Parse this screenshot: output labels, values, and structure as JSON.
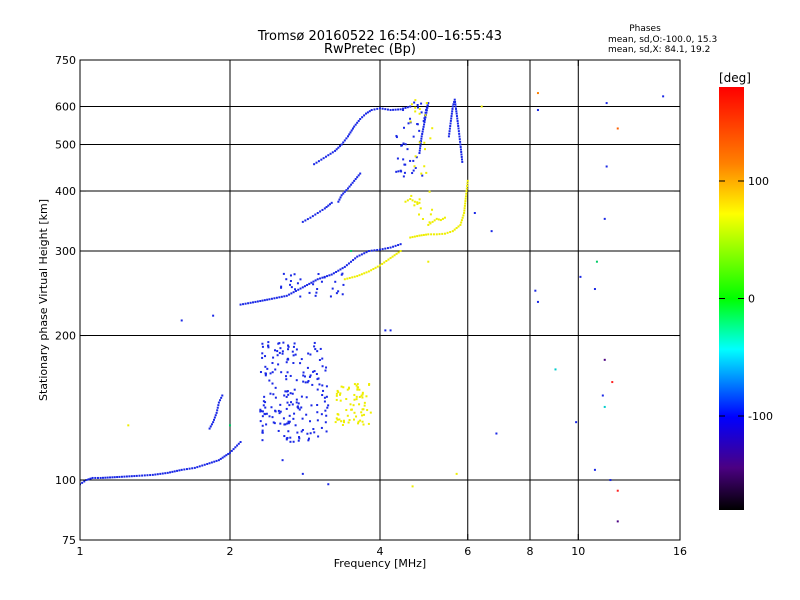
{
  "chart_data": {
    "type": "scatter",
    "title": "Tromsø 20160522 16:54:00–16:55:43",
    "subtitle": "RwPretec (Bp)",
    "xlabel": "Frequency [MHz]",
    "ylabel": "Stationary phase Virtual Height [km]",
    "x_scale": "log",
    "y_scale": "log",
    "xlim": [
      1,
      16
    ],
    "ylim": [
      75,
      750
    ],
    "x_ticks": [
      1,
      2,
      4,
      6,
      8,
      10,
      16
    ],
    "x_tick_labels": [
      "1",
      "2",
      "4",
      "6",
      "8",
      "10",
      "16"
    ],
    "x_grid": [
      2,
      4,
      6,
      8,
      10
    ],
    "y_ticks": [
      75,
      100,
      200,
      300,
      400,
      500,
      600,
      750
    ],
    "y_tick_labels": [
      "75",
      "100",
      "200",
      "300",
      "400",
      "500",
      "600",
      "750"
    ],
    "y_grid": [
      100,
      200,
      300,
      400,
      500,
      600
    ],
    "grid": true,
    "phases_info": {
      "heading": "Phases",
      "line1": "mean, sd,O:-100.0, 15.3",
      "line2": "mean, sd,X:  84.1, 19.2"
    },
    "colorbar": {
      "label": "[deg]",
      "range": [
        -180,
        180
      ],
      "ticks": [
        100,
        0,
        -100
      ],
      "tick_labels": [
        "100",
        "0",
        "-100"
      ],
      "colors": [
        "#ff0000",
        "#ff8000",
        "#ffff00",
        "#00ff00",
        "#00ffff",
        "#0000ff",
        "#4b0082",
        "#000000"
      ]
    },
    "point_size": 2,
    "traces": [
      {
        "color": "#1a28e6",
        "phase": -100,
        "points": [
          [
            1.0,
            98
          ],
          [
            1.03,
            100
          ],
          [
            1.06,
            101
          ],
          [
            1.1,
            101
          ],
          [
            1.2,
            101.5
          ],
          [
            1.3,
            102
          ],
          [
            1.4,
            102.5
          ],
          [
            1.5,
            103.5
          ],
          [
            1.6,
            105
          ],
          [
            1.7,
            106
          ],
          [
            1.8,
            108
          ],
          [
            1.9,
            110
          ],
          [
            1.95,
            112
          ],
          [
            2.0,
            114
          ],
          [
            2.05,
            117
          ],
          [
            2.1,
            120
          ]
        ]
      },
      {
        "color": "#1a28e6",
        "phase": -100,
        "points": [
          [
            1.82,
            128
          ],
          [
            1.85,
            132
          ],
          [
            1.88,
            138
          ],
          [
            1.9,
            145
          ],
          [
            1.93,
            150
          ]
        ]
      },
      {
        "color": "#1a28e6",
        "phase": -100,
        "points": [
          [
            2.1,
            232
          ],
          [
            2.2,
            234
          ],
          [
            2.3,
            236
          ],
          [
            2.4,
            238
          ],
          [
            2.6,
            242
          ],
          [
            2.8,
            252
          ],
          [
            3.0,
            262
          ],
          [
            3.2,
            268
          ],
          [
            3.4,
            278
          ],
          [
            3.6,
            292
          ],
          [
            3.8,
            300
          ],
          [
            4.0,
            302
          ],
          [
            4.2,
            305
          ],
          [
            4.4,
            310
          ]
        ]
      },
      {
        "color": "#1a28e6",
        "phase": -100,
        "points": [
          [
            2.8,
            345
          ],
          [
            2.9,
            352
          ],
          [
            3.0,
            360
          ],
          [
            3.1,
            368
          ],
          [
            3.2,
            378
          ]
        ]
      },
      {
        "color": "#1a28e6",
        "phase": -100,
        "points": [
          [
            2.95,
            455
          ],
          [
            3.05,
            465
          ],
          [
            3.15,
            475
          ],
          [
            3.25,
            485
          ],
          [
            3.35,
            500
          ],
          [
            3.45,
            520
          ],
          [
            3.55,
            545
          ],
          [
            3.65,
            565
          ],
          [
            3.75,
            580
          ],
          [
            3.85,
            590
          ],
          [
            4.0,
            595
          ],
          [
            4.2,
            590
          ],
          [
            4.4,
            592
          ],
          [
            4.6,
            600
          ]
        ]
      },
      {
        "color": "#1a28e6",
        "phase": -100,
        "points": [
          [
            3.3,
            380
          ],
          [
            3.35,
            392
          ],
          [
            3.45,
            405
          ],
          [
            3.55,
            420
          ],
          [
            3.65,
            435
          ]
        ]
      },
      {
        "color": "#1a28e6",
        "phase": -100,
        "points": [
          [
            4.9,
            560
          ],
          [
            4.95,
            590
          ],
          [
            5.0,
            610
          ],
          [
            4.85,
            520
          ],
          [
            4.8,
            480
          ]
        ]
      },
      {
        "color": "#1a28e6",
        "phase": -100,
        "points": [
          [
            5.5,
            520
          ],
          [
            5.55,
            560
          ],
          [
            5.6,
            600
          ],
          [
            5.65,
            620
          ],
          [
            5.7,
            580
          ],
          [
            5.75,
            540
          ],
          [
            5.8,
            500
          ],
          [
            5.85,
            460
          ]
        ]
      },
      {
        "color": "#eeee00",
        "phase": 100,
        "points": [
          [
            3.4,
            262
          ],
          [
            3.6,
            266
          ],
          [
            3.8,
            272
          ],
          [
            4.0,
            280
          ],
          [
            4.2,
            290
          ],
          [
            4.4,
            300
          ]
        ]
      },
      {
        "color": "#eeee00",
        "phase": 100,
        "points": [
          [
            4.6,
            320
          ],
          [
            4.8,
            323
          ],
          [
            5.0,
            325
          ],
          [
            5.2,
            325
          ],
          [
            5.4,
            326
          ],
          [
            5.6,
            330
          ],
          [
            5.8,
            340
          ],
          [
            5.9,
            360
          ],
          [
            5.95,
            390
          ],
          [
            6.0,
            420
          ]
        ]
      },
      {
        "color": "#eeee00",
        "phase": 100,
        "points": [
          [
            4.5,
            380
          ],
          [
            4.6,
            385
          ],
          [
            4.7,
            380
          ],
          [
            4.8,
            378
          ]
        ]
      },
      {
        "color": "#eeee00",
        "phase": 100,
        "points": [
          [
            5.0,
            340
          ],
          [
            5.1,
            345
          ],
          [
            5.2,
            350
          ],
          [
            5.3,
            348
          ],
          [
            5.4,
            352
          ]
        ]
      }
    ],
    "clusters": [
      {
        "color": "#1a28e6",
        "phase": -100,
        "x_range": [
          2.3,
          3.15
        ],
        "y_range": [
          120,
          195
        ],
        "count": 200
      },
      {
        "color": "#1a28e6",
        "phase": -100,
        "x_range": [
          2.5,
          3.4
        ],
        "y_range": [
          240,
          270
        ],
        "count": 30
      },
      {
        "color": "#1a28e6",
        "phase": -100,
        "x_range": [
          4.3,
          4.9
        ],
        "y_range": [
          420,
          620
        ],
        "count": 40
      },
      {
        "color": "#eeee00",
        "phase": 100,
        "x_range": [
          3.25,
          3.85
        ],
        "y_range": [
          130,
          160
        ],
        "count": 70
      },
      {
        "color": "#eeee00",
        "phase": 100,
        "x_range": [
          4.6,
          5.1
        ],
        "y_range": [
          330,
          620
        ],
        "count": 30
      }
    ],
    "scatter_points": [
      {
        "x": 1.6,
        "y": 215,
        "color": "#1a28e6"
      },
      {
        "x": 1.85,
        "y": 220,
        "color": "#1a28e6"
      },
      {
        "x": 2.55,
        "y": 110,
        "color": "#1a28e6"
      },
      {
        "x": 2.8,
        "y": 103,
        "color": "#1a28e6"
      },
      {
        "x": 3.15,
        "y": 98,
        "color": "#1a28e6"
      },
      {
        "x": 4.1,
        "y": 205,
        "color": "#1a28e6"
      },
      {
        "x": 4.2,
        "y": 205,
        "color": "#1a28e6"
      },
      {
        "x": 6.2,
        "y": 360,
        "color": "#1a28e6"
      },
      {
        "x": 6.7,
        "y": 330,
        "color": "#1a28e6"
      },
      {
        "x": 6.85,
        "y": 125,
        "color": "#1a28e6"
      },
      {
        "x": 8.2,
        "y": 248,
        "color": "#1a28e6"
      },
      {
        "x": 8.3,
        "y": 235,
        "color": "#1a28e6"
      },
      {
        "x": 8.3,
        "y": 590,
        "color": "#1a28e6"
      },
      {
        "x": 9.0,
        "y": 170,
        "color": "#00cccc"
      },
      {
        "x": 9.9,
        "y": 132,
        "color": "#1a28e6"
      },
      {
        "x": 10.1,
        "y": 265,
        "color": "#1a28e6"
      },
      {
        "x": 10.8,
        "y": 250,
        "color": "#1a28e6"
      },
      {
        "x": 10.8,
        "y": 105,
        "color": "#1a28e6"
      },
      {
        "x": 11.2,
        "y": 150,
        "color": "#1a28e6"
      },
      {
        "x": 11.3,
        "y": 142,
        "color": "#00cccc"
      },
      {
        "x": 11.3,
        "y": 178,
        "color": "#4b0082"
      },
      {
        "x": 11.3,
        "y": 350,
        "color": "#1a28e6"
      },
      {
        "x": 11.4,
        "y": 450,
        "color": "#1a28e6"
      },
      {
        "x": 11.4,
        "y": 610,
        "color": "#1a28e6"
      },
      {
        "x": 11.6,
        "y": 100,
        "color": "#1a28e6"
      },
      {
        "x": 11.7,
        "y": 160,
        "color": "#ff2020"
      },
      {
        "x": 12.0,
        "y": 95,
        "color": "#ff2020"
      },
      {
        "x": 12.0,
        "y": 82,
        "color": "#4b0082"
      },
      {
        "x": 12.0,
        "y": 540,
        "color": "#ff6000"
      },
      {
        "x": 14.8,
        "y": 630,
        "color": "#1a28e6"
      },
      {
        "x": 5.7,
        "y": 103,
        "color": "#eeee00"
      },
      {
        "x": 5.0,
        "y": 285,
        "color": "#eeee00"
      },
      {
        "x": 4.65,
        "y": 97,
        "color": "#eeee00"
      },
      {
        "x": 1.25,
        "y": 130,
        "color": "#eeee00"
      },
      {
        "x": 3.5,
        "y": 300,
        "color": "#00cc66"
      },
      {
        "x": 6.4,
        "y": 600,
        "color": "#eeee00"
      },
      {
        "x": 8.3,
        "y": 640,
        "color": "#ff8000"
      },
      {
        "x": 10.9,
        "y": 285,
        "color": "#00cc66"
      },
      {
        "x": 2.0,
        "y": 130,
        "color": "#00cc66"
      }
    ]
  }
}
